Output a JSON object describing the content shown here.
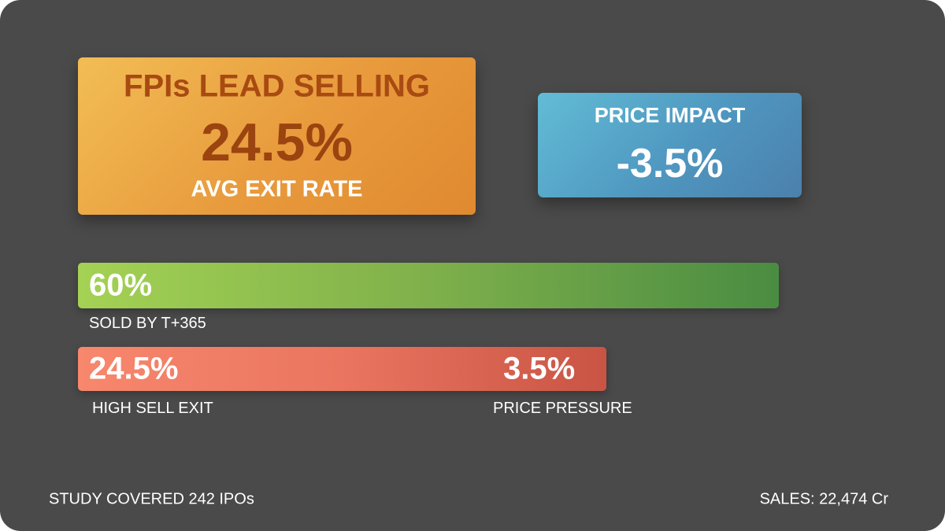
{
  "lead_card": {
    "title": "FPIs LEAD SELLING",
    "value": "24.5%",
    "subtitle": "AVG EXIT RATE"
  },
  "impact_card": {
    "title": "PRICE IMPACT",
    "value": "-3.5%"
  },
  "sold_bar": {
    "value_label": "60%",
    "fill_fraction": 0.6,
    "caption": "SOLD BY T+365",
    "color_start": "#a4d254",
    "color_end": "#4a8c42"
  },
  "exit_bar": {
    "value_label": "24.5%",
    "secondary_label": "3.5%",
    "caption": "HIGH SELL EXIT",
    "secondary_caption": "PRICE PRESSURE",
    "color_start": "#f7876d",
    "color_end": "#c95444"
  },
  "footer": {
    "left": "STUDY COVERED 242 IPOs",
    "right": "SALES: 22,474 Cr"
  },
  "colors": {
    "background": "#4a4a4a",
    "lead_card": "#e89a3c",
    "lead_text": "#9b4410",
    "impact_card": "#4f97c0"
  }
}
